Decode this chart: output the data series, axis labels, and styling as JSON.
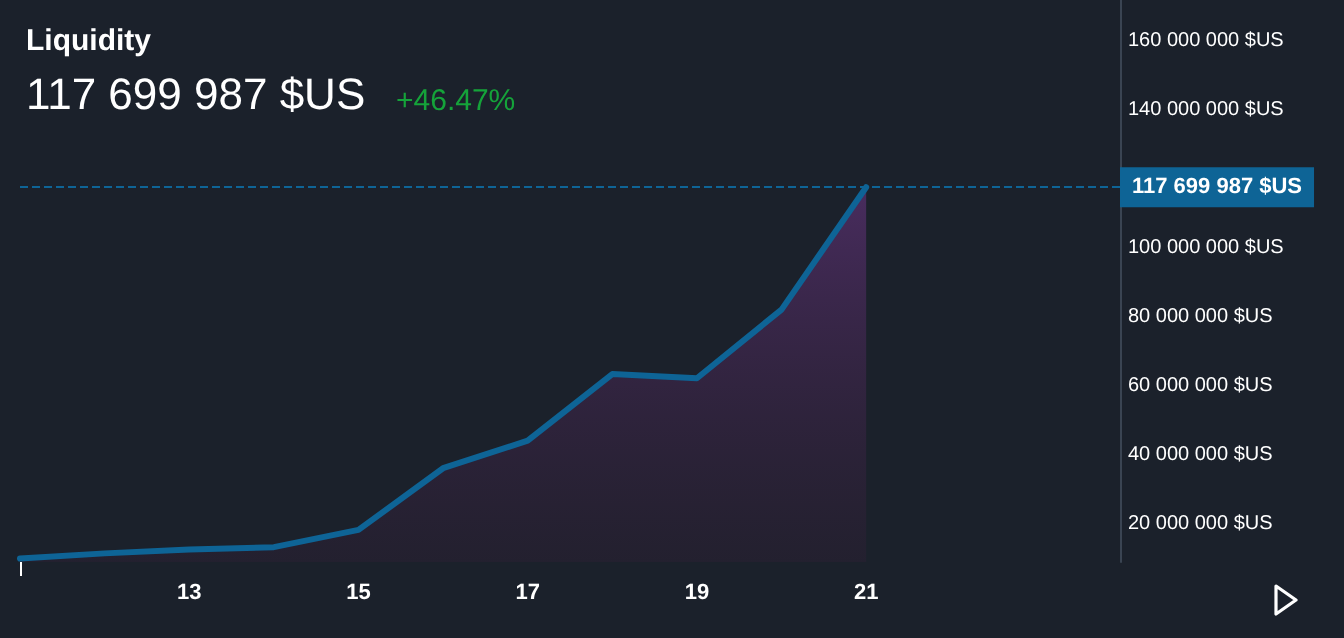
{
  "chart_data": {
    "type": "area",
    "title": "Liquidity",
    "subtitle": "117 699 987 $US",
    "annotations": [
      "+46.47%"
    ],
    "x": [
      11,
      12,
      13,
      14,
      15,
      16,
      17,
      18,
      19,
      20,
      21
    ],
    "series": [
      {
        "color": "#0e6496",
        "values": [
          10000000,
          11500000,
          12600000,
          13300000,
          18300000,
          36200000,
          44200000,
          63500000,
          62300000,
          82200000,
          117699987
        ]
      }
    ],
    "xlim": [
      11,
      24
    ],
    "xticks": [
      {
        "value": 11,
        "label": null
      },
      13,
      15,
      17,
      19,
      21
    ],
    "ylim": [
      9000000,
      172000000
    ],
    "yticks": [
      {
        "value": 20000000,
        "label": "20 000 000 $US"
      },
      {
        "value": 40000000,
        "label": "40 000 000 $US"
      },
      {
        "value": 60000000,
        "label": "60 000 000 $US"
      },
      {
        "value": 80000000,
        "label": "80 000 000 $US"
      },
      {
        "value": 100000000,
        "label": "100 000 000 $US"
      },
      {
        "value": 140000000,
        "label": "140 000 000 $US"
      },
      {
        "value": 160000000,
        "label": "160 000 000 $US"
      }
    ],
    "ref_lines": [
      {
        "axis": "y",
        "value": 117699987,
        "label": "117 699 987 $US",
        "color": "#0e6496",
        "line_style": "dashed"
      }
    ],
    "grid": false,
    "marker": "none",
    "line_style": "solid"
  }
}
